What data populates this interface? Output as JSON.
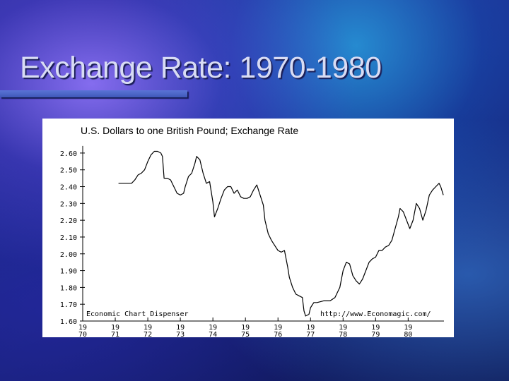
{
  "slide": {
    "title": "Exchange Rate: 1970-1980"
  },
  "chart_data": {
    "type": "line",
    "title": "U.S. Dollars to one British Pound; Exchange Rate",
    "xlabel": "",
    "ylabel": "",
    "ylim": [
      1.6,
      2.65
    ],
    "grid": false,
    "y_ticks": [
      "1.60",
      "1.70",
      "1.80",
      "1.90",
      "2.00",
      "2.10",
      "2.20",
      "2.30",
      "2.40",
      "2.50",
      "2.60"
    ],
    "x_ticks": [
      {
        "top": "19",
        "bottom": "70"
      },
      {
        "top": "19",
        "bottom": "71"
      },
      {
        "top": "19",
        "bottom": "72"
      },
      {
        "top": "19",
        "bottom": "73"
      },
      {
        "top": "19",
        "bottom": "74"
      },
      {
        "top": "19",
        "bottom": "75"
      },
      {
        "top": "19",
        "bottom": "76"
      },
      {
        "top": "19",
        "bottom": "77"
      },
      {
        "top": "19",
        "bottom": "78"
      },
      {
        "top": "19",
        "bottom": "79"
      },
      {
        "top": "19",
        "bottom": "80"
      }
    ],
    "xlim": [
      1970.0,
      1981.1
    ],
    "annotations": {
      "left": "Economic Chart Dispenser",
      "right": "http://www.Economagic.com/"
    },
    "series": [
      {
        "points": [
          [
            1971.1,
            2.42
          ],
          [
            1971.25,
            2.42
          ],
          [
            1971.4,
            2.42
          ],
          [
            1971.5,
            2.42
          ],
          [
            1971.6,
            2.44
          ],
          [
            1971.7,
            2.47
          ],
          [
            1971.8,
            2.48
          ],
          [
            1971.9,
            2.5
          ],
          [
            1972.0,
            2.55
          ],
          [
            1972.1,
            2.59
          ],
          [
            1972.2,
            2.61
          ],
          [
            1972.3,
            2.61
          ],
          [
            1972.4,
            2.6
          ],
          [
            1972.45,
            2.58
          ],
          [
            1972.5,
            2.45
          ],
          [
            1972.6,
            2.45
          ],
          [
            1972.7,
            2.44
          ],
          [
            1972.8,
            2.4
          ],
          [
            1972.9,
            2.36
          ],
          [
            1973.0,
            2.35
          ],
          [
            1973.1,
            2.36
          ],
          [
            1973.15,
            2.4
          ],
          [
            1973.25,
            2.46
          ],
          [
            1973.35,
            2.48
          ],
          [
            1973.45,
            2.54
          ],
          [
            1973.5,
            2.58
          ],
          [
            1973.6,
            2.56
          ],
          [
            1973.7,
            2.48
          ],
          [
            1973.8,
            2.42
          ],
          [
            1973.9,
            2.43
          ],
          [
            1974.0,
            2.31
          ],
          [
            1974.05,
            2.22
          ],
          [
            1974.15,
            2.27
          ],
          [
            1974.25,
            2.33
          ],
          [
            1974.35,
            2.38
          ],
          [
            1974.45,
            2.4
          ],
          [
            1974.55,
            2.4
          ],
          [
            1974.65,
            2.36
          ],
          [
            1974.75,
            2.38
          ],
          [
            1974.85,
            2.34
          ],
          [
            1974.95,
            2.33
          ],
          [
            1975.05,
            2.33
          ],
          [
            1975.15,
            2.34
          ],
          [
            1975.25,
            2.38
          ],
          [
            1975.35,
            2.41
          ],
          [
            1975.45,
            2.35
          ],
          [
            1975.55,
            2.29
          ],
          [
            1975.6,
            2.2
          ],
          [
            1975.7,
            2.12
          ],
          [
            1975.8,
            2.08
          ],
          [
            1975.9,
            2.05
          ],
          [
            1976.0,
            2.02
          ],
          [
            1976.1,
            2.01
          ],
          [
            1976.2,
            2.02
          ],
          [
            1976.3,
            1.92
          ],
          [
            1976.35,
            1.86
          ],
          [
            1976.45,
            1.8
          ],
          [
            1976.55,
            1.76
          ],
          [
            1976.65,
            1.75
          ],
          [
            1976.75,
            1.74
          ],
          [
            1976.8,
            1.66
          ],
          [
            1976.85,
            1.63
          ],
          [
            1976.95,
            1.64
          ],
          [
            1977.0,
            1.68
          ],
          [
            1977.1,
            1.71
          ],
          [
            1977.2,
            1.71
          ],
          [
            1977.4,
            1.72
          ],
          [
            1977.6,
            1.72
          ],
          [
            1977.75,
            1.74
          ],
          [
            1977.85,
            1.78
          ],
          [
            1977.9,
            1.8
          ],
          [
            1978.0,
            1.9
          ],
          [
            1978.1,
            1.95
          ],
          [
            1978.2,
            1.94
          ],
          [
            1978.3,
            1.87
          ],
          [
            1978.4,
            1.84
          ],
          [
            1978.5,
            1.82
          ],
          [
            1978.6,
            1.85
          ],
          [
            1978.7,
            1.9
          ],
          [
            1978.8,
            1.95
          ],
          [
            1978.9,
            1.97
          ],
          [
            1979.0,
            1.98
          ],
          [
            1979.1,
            2.02
          ],
          [
            1979.2,
            2.02
          ],
          [
            1979.3,
            2.04
          ],
          [
            1979.4,
            2.05
          ],
          [
            1979.5,
            2.08
          ],
          [
            1979.6,
            2.15
          ],
          [
            1979.7,
            2.22
          ],
          [
            1979.75,
            2.27
          ],
          [
            1979.85,
            2.25
          ],
          [
            1979.95,
            2.2
          ],
          [
            1980.05,
            2.15
          ],
          [
            1980.15,
            2.2
          ],
          [
            1980.25,
            2.3
          ],
          [
            1980.35,
            2.27
          ],
          [
            1980.45,
            2.2
          ],
          [
            1980.55,
            2.26
          ],
          [
            1980.65,
            2.35
          ],
          [
            1980.75,
            2.38
          ],
          [
            1980.85,
            2.4
          ],
          [
            1980.95,
            2.42
          ],
          [
            1981.0,
            2.4
          ],
          [
            1981.08,
            2.35
          ]
        ]
      }
    ],
    "colors": {
      "line": "#000000",
      "axis": "#000000",
      "panel": "#ffffff"
    }
  }
}
